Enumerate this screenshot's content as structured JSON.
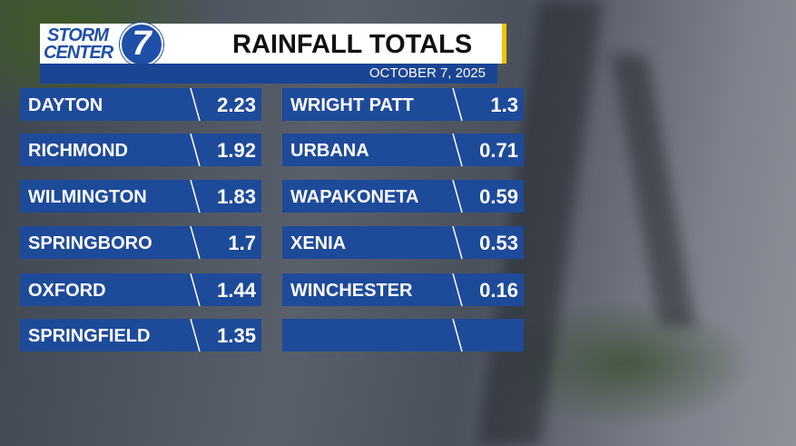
{
  "header": {
    "logo_top": "STORM",
    "logo_bottom": "CENTER",
    "logo_number": "7",
    "title": "RAINFALL TOTALS",
    "date": "OCTOBER 7, 2025"
  },
  "table": {
    "columns": [
      [
        {
          "name": "DAYTON",
          "value": 2.23
        },
        {
          "name": "RICHMOND",
          "value": 1.92
        },
        {
          "name": "WILMINGTON",
          "value": 1.83
        },
        {
          "name": "SPRINGBORO",
          "value": 1.7
        },
        {
          "name": "OXFORD",
          "value": 1.44
        },
        {
          "name": "SPRINGFIELD",
          "value": 1.35
        }
      ],
      [
        {
          "name": "WRIGHT PATT",
          "value": 1.3
        },
        {
          "name": "URBANA",
          "value": 0.71
        },
        {
          "name": "WAPAKONETA",
          "value": 0.59
        },
        {
          "name": "XENIA",
          "value": 0.53
        },
        {
          "name": "WINCHESTER",
          "value": 0.16
        }
      ]
    ]
  }
}
